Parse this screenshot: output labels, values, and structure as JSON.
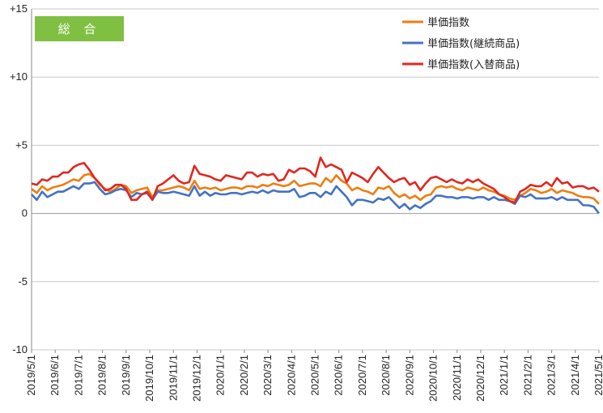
{
  "chart_data": {
    "type": "line",
    "title": "",
    "badge": "総 合",
    "xlabel": "",
    "ylabel": "",
    "ylim": [
      -10,
      15
    ],
    "y_ticks": [
      {
        "value": 15,
        "label": "+15"
      },
      {
        "value": 10,
        "label": "+10"
      },
      {
        "value": 5,
        "label": "+5"
      },
      {
        "value": 0,
        "label": "0"
      },
      {
        "value": -5,
        "label": "-5"
      },
      {
        "value": -10,
        "label": "-10"
      }
    ],
    "x_ticks": [
      "2019/5/1",
      "2019/6/1",
      "2019/7/1",
      "2019/8/1",
      "2019/9/1",
      "2019/10/1",
      "2019/11/1",
      "2019/12/1",
      "2020/1/1",
      "2020/2/1",
      "2020/3/1",
      "2020/4/1",
      "2020/5/1",
      "2020/6/1",
      "2020/7/1",
      "2020/8/1",
      "2020/9/1",
      "2020/10/1",
      "2020/11/1",
      "2020/12/1",
      "2021/1/1",
      "2021/2/1",
      "2021/3/1",
      "2021/4/1",
      "2021/5/1"
    ],
    "grid": "horizontal",
    "legend_position": "top-right",
    "series": [
      {
        "name": "単価指数",
        "color": "#ee7d10",
        "values": [
          1.8,
          1.5,
          2.0,
          1.7,
          1.9,
          2.0,
          2.1,
          2.3,
          2.5,
          2.4,
          2.8,
          2.9,
          2.6,
          2.1,
          1.8,
          1.6,
          1.8,
          2.1,
          2.0,
          1.5,
          1.7,
          1.8,
          1.9,
          1.2,
          1.7,
          1.7,
          1.8,
          1.9,
          2.0,
          1.9,
          1.7,
          2.4,
          1.8,
          1.9,
          1.8,
          1.9,
          1.7,
          1.8,
          1.9,
          1.9,
          1.8,
          2.0,
          2.0,
          1.9,
          2.1,
          2.0,
          2.2,
          2.1,
          2.0,
          2.1,
          2.4,
          2.0,
          2.1,
          2.2,
          2.2,
          2.0,
          2.6,
          2.3,
          2.8,
          2.4,
          2.2,
          1.7,
          1.9,
          1.7,
          1.6,
          1.4,
          1.9,
          1.8,
          2.0,
          1.5,
          1.2,
          1.4,
          1.1,
          1.3,
          1.0,
          1.3,
          1.4,
          1.9,
          2.0,
          1.9,
          2.0,
          1.8,
          1.7,
          1.9,
          1.8,
          1.7,
          1.9,
          1.7,
          1.6,
          1.4,
          1.3,
          1.1,
          1.0,
          1.3,
          1.5,
          1.8,
          1.7,
          1.5,
          1.6,
          1.8,
          1.5,
          1.7,
          1.6,
          1.5,
          1.3,
          1.2,
          1.2,
          1.1,
          0.7
        ]
      },
      {
        "name": "単価指数(継続商品)",
        "color": "#4472c4",
        "values": [
          1.4,
          1.0,
          1.6,
          1.2,
          1.4,
          1.6,
          1.6,
          1.8,
          2.0,
          1.8,
          2.2,
          2.2,
          2.3,
          1.8,
          1.4,
          1.5,
          1.7,
          1.8,
          1.7,
          1.2,
          1.5,
          1.4,
          1.5,
          1.0,
          1.6,
          1.5,
          1.5,
          1.6,
          1.5,
          1.4,
          1.3,
          2.0,
          1.3,
          1.6,
          1.3,
          1.5,
          1.4,
          1.4,
          1.5,
          1.5,
          1.4,
          1.5,
          1.6,
          1.5,
          1.7,
          1.5,
          1.7,
          1.6,
          1.6,
          1.6,
          1.8,
          1.2,
          1.3,
          1.5,
          1.5,
          1.2,
          1.6,
          1.4,
          2.0,
          1.6,
          1.2,
          0.6,
          1.0,
          1.0,
          0.9,
          0.8,
          1.1,
          1.0,
          1.2,
          0.8,
          0.4,
          0.7,
          0.3,
          0.6,
          0.4,
          0.7,
          0.9,
          1.3,
          1.3,
          1.2,
          1.2,
          1.1,
          1.2,
          1.2,
          1.1,
          1.2,
          1.2,
          1.0,
          1.2,
          1.0,
          1.0,
          0.9,
          0.7,
          1.3,
          1.2,
          1.4,
          1.1,
          1.1,
          1.1,
          1.2,
          1.0,
          1.2,
          1.0,
          1.0,
          1.0,
          0.6,
          0.6,
          0.5,
          0.0
        ]
      },
      {
        "name": "単価指数(入替商品)",
        "color": "#e0271f",
        "values": [
          2.2,
          2.1,
          2.5,
          2.4,
          2.7,
          2.7,
          3.0,
          3.0,
          3.4,
          3.6,
          3.7,
          3.2,
          2.6,
          2.2,
          1.7,
          1.8,
          2.1,
          2.1,
          1.8,
          1.0,
          1.0,
          1.4,
          1.6,
          1.0,
          2.0,
          2.2,
          2.5,
          2.8,
          2.4,
          2.2,
          2.3,
          3.5,
          2.9,
          2.8,
          2.7,
          2.5,
          2.4,
          2.8,
          2.7,
          2.6,
          2.5,
          3.0,
          3.0,
          2.7,
          2.9,
          2.8,
          2.9,
          2.4,
          2.5,
          3.2,
          3.0,
          3.3,
          3.3,
          3.1,
          2.7,
          4.1,
          3.4,
          3.6,
          3.4,
          3.2,
          2.3,
          3.0,
          2.8,
          2.6,
          2.3,
          2.9,
          3.4,
          3.0,
          2.6,
          2.3,
          2.5,
          2.6,
          2.1,
          2.3,
          1.7,
          2.2,
          2.6,
          2.7,
          2.5,
          2.3,
          2.5,
          2.3,
          2.2,
          2.5,
          2.3,
          2.5,
          2.2,
          2.0,
          1.8,
          1.4,
          1.2,
          0.9,
          0.8,
          1.6,
          1.8,
          2.1,
          2.0,
          2.0,
          2.3,
          2.0,
          2.6,
          2.2,
          2.3,
          1.9,
          2.0,
          2.0,
          1.8,
          1.9,
          1.6
        ]
      }
    ]
  }
}
